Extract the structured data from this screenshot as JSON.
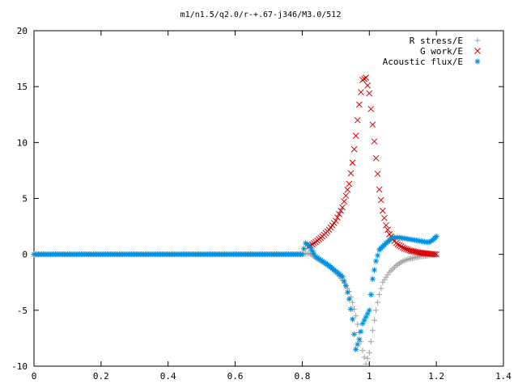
{
  "chart_data": {
    "type": "scatter",
    "title": "m1/n1.5/q2.0/r-+.67-j346/M3.0/512",
    "xlabel": "",
    "ylabel": "",
    "xlim": [
      0,
      1.4
    ],
    "ylim": [
      -10,
      20
    ],
    "x_ticks": [
      "0",
      "0.2",
      "0.4",
      "0.6",
      "0.8",
      "1",
      "1.2",
      "1.4"
    ],
    "y_ticks": [
      "-10",
      "-5",
      "0",
      "5",
      "10",
      "15",
      "20"
    ],
    "grid": false,
    "legend_position": "top-right",
    "series": [
      {
        "name": "R stress/E",
        "marker": "+",
        "color": "#a0a0a0",
        "points": [
          [
            0.0,
            0
          ],
          [
            0.1,
            0
          ],
          [
            0.2,
            0
          ],
          [
            0.3,
            0
          ],
          [
            0.4,
            0
          ],
          [
            0.5,
            0
          ],
          [
            0.6,
            0
          ],
          [
            0.7,
            0
          ],
          [
            0.8,
            0
          ],
          [
            0.82,
            0.1
          ],
          [
            0.84,
            -0.3
          ],
          [
            0.86,
            -0.7
          ],
          [
            0.88,
            -1.1
          ],
          [
            0.9,
            -1.6
          ],
          [
            0.92,
            -2.3
          ],
          [
            0.94,
            -3.3
          ],
          [
            0.95,
            -4.3
          ],
          [
            0.96,
            -5.5
          ],
          [
            0.97,
            -7.0
          ],
          [
            0.98,
            -8.6
          ],
          [
            0.99,
            -9.8
          ],
          [
            1.0,
            -8.8
          ],
          [
            1.01,
            -6.8
          ],
          [
            1.02,
            -5.0
          ],
          [
            1.03,
            -3.6
          ],
          [
            1.04,
            -2.5
          ],
          [
            1.06,
            -1.6
          ],
          [
            1.08,
            -1.0
          ],
          [
            1.1,
            -0.6
          ],
          [
            1.12,
            -0.4
          ],
          [
            1.15,
            -0.2
          ],
          [
            1.18,
            -0.1
          ],
          [
            1.2,
            -0.05
          ]
        ]
      },
      {
        "name": "G work/E",
        "marker": "x",
        "color": "#d00000",
        "points": [
          [
            0.82,
            0.7
          ],
          [
            0.84,
            1.1
          ],
          [
            0.86,
            1.6
          ],
          [
            0.88,
            2.2
          ],
          [
            0.9,
            3.0
          ],
          [
            0.92,
            4.2
          ],
          [
            0.94,
            6.3
          ],
          [
            0.95,
            8.2
          ],
          [
            0.96,
            10.6
          ],
          [
            0.97,
            13.4
          ],
          [
            0.98,
            15.6
          ],
          [
            0.99,
            15.8
          ],
          [
            1.0,
            14.4
          ],
          [
            1.01,
            11.6
          ],
          [
            1.02,
            8.6
          ],
          [
            1.03,
            5.8
          ],
          [
            1.04,
            3.9
          ],
          [
            1.05,
            2.6
          ],
          [
            1.06,
            1.8
          ],
          [
            1.08,
            1.0
          ],
          [
            1.1,
            0.6
          ],
          [
            1.12,
            0.35
          ],
          [
            1.15,
            0.15
          ],
          [
            1.18,
            0.05
          ],
          [
            1.2,
            0.0
          ]
        ]
      },
      {
        "name": "Acoustic flux/E",
        "marker": "*",
        "color": "#0090e0",
        "points": [
          [
            0.0,
            0
          ],
          [
            0.1,
            0
          ],
          [
            0.2,
            0
          ],
          [
            0.3,
            0
          ],
          [
            0.4,
            0
          ],
          [
            0.5,
            0
          ],
          [
            0.6,
            0
          ],
          [
            0.7,
            0
          ],
          [
            0.8,
            0
          ],
          [
            0.81,
            1.0
          ],
          [
            0.82,
            0.8
          ],
          [
            0.83,
            0.3
          ],
          [
            0.84,
            -0.2
          ],
          [
            0.86,
            -0.6
          ],
          [
            0.88,
            -1.0
          ],
          [
            0.9,
            -1.5
          ],
          [
            0.92,
            -2.0
          ],
          [
            0.93,
            -2.8
          ],
          [
            0.94,
            -4.0
          ],
          [
            0.95,
            -5.8
          ],
          [
            0.96,
            -8.5
          ],
          [
            0.97,
            -7.6
          ],
          [
            0.98,
            -6.2
          ],
          [
            0.99,
            -5.6
          ],
          [
            1.0,
            -5.0
          ],
          [
            1.01,
            -2.2
          ],
          [
            1.02,
            -0.6
          ],
          [
            1.03,
            0.4
          ],
          [
            1.05,
            1.0
          ],
          [
            1.07,
            1.5
          ],
          [
            1.09,
            1.5
          ],
          [
            1.11,
            1.4
          ],
          [
            1.13,
            1.3
          ],
          [
            1.15,
            1.2
          ],
          [
            1.17,
            1.1
          ],
          [
            1.18,
            1.1
          ],
          [
            1.19,
            1.3
          ],
          [
            1.2,
            1.6
          ]
        ]
      }
    ]
  }
}
